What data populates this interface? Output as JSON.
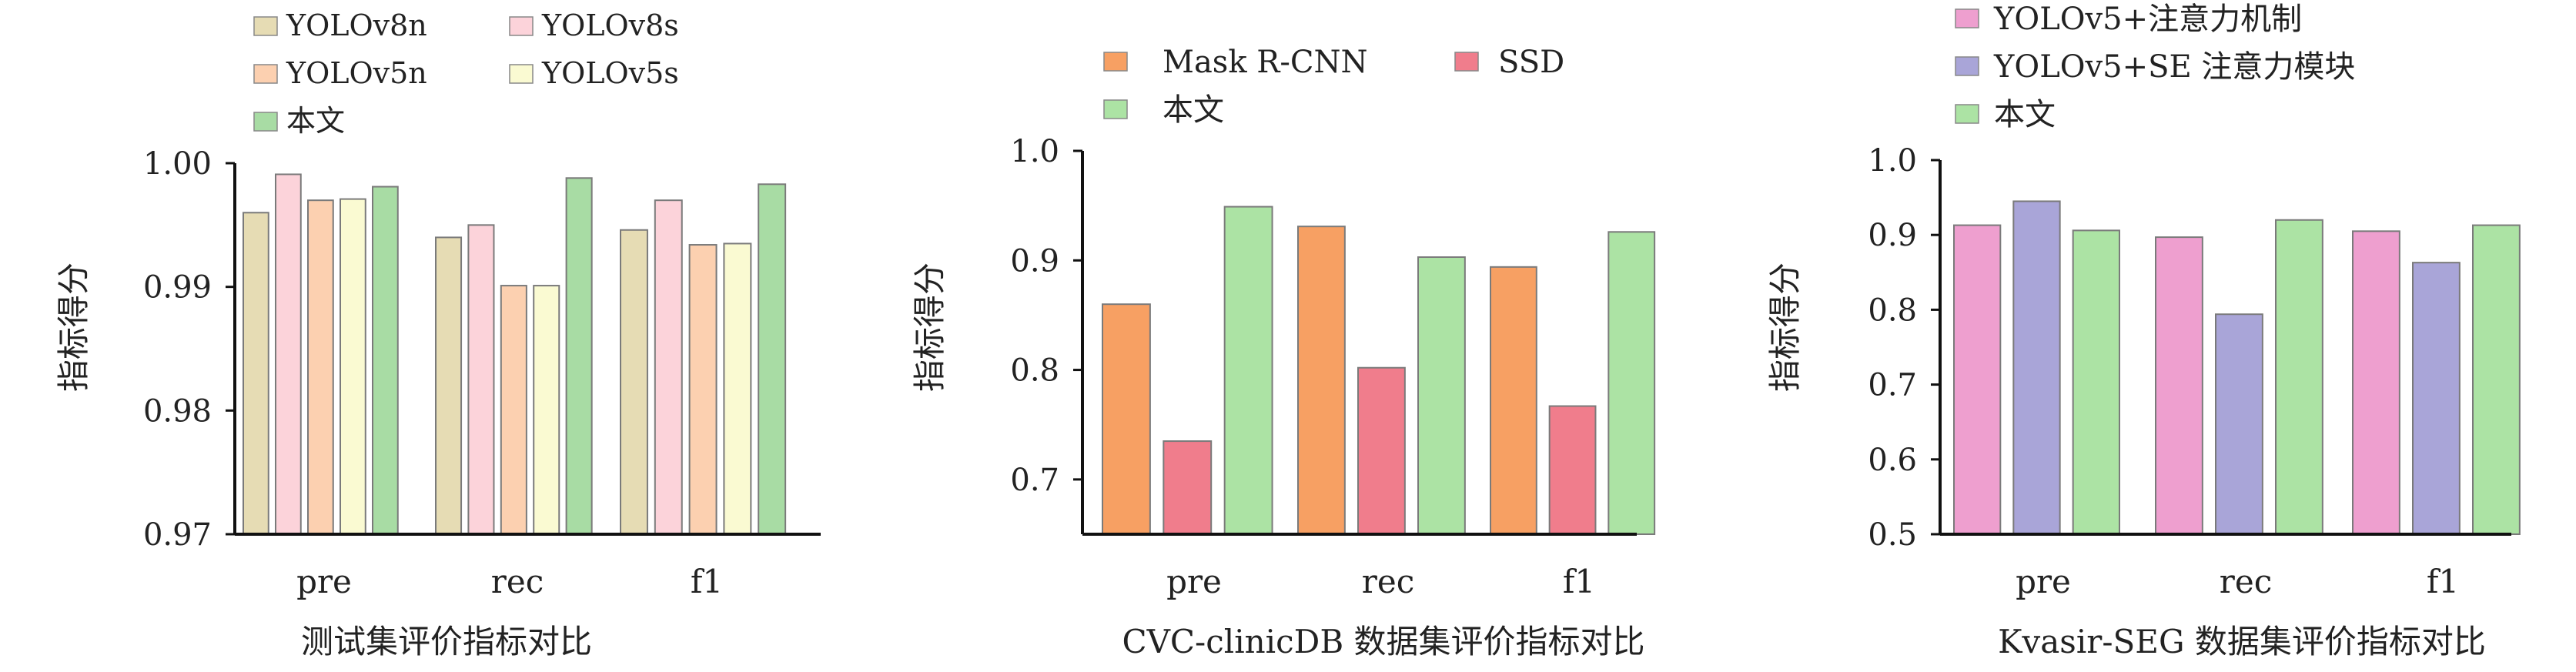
{
  "chart_data": [
    {
      "type": "bar",
      "title": "测试集评价指标对比",
      "ylabel": "指标得分",
      "xlabel": "",
      "categories": [
        "pre",
        "rec",
        "f1"
      ],
      "ylim": [
        0.97,
        1.0
      ],
      "yticks": [
        "0.97",
        "0.98",
        "0.99",
        "1.00"
      ],
      "tick_values": [
        0.97,
        0.98,
        0.99,
        1.0
      ],
      "legend_position": "top-left",
      "series": [
        {
          "name": "YOLOv8n",
          "color": "#e6dcb4",
          "values": [
            0.996,
            0.994,
            0.9946
          ]
        },
        {
          "name": "YOLOv8s",
          "color": "#fcd3da",
          "values": [
            0.9991,
            0.995,
            0.997
          ]
        },
        {
          "name": "YOLOv5n",
          "color": "#fcd0b0",
          "values": [
            0.997,
            0.9901,
            0.9934
          ]
        },
        {
          "name": "YOLOv5s",
          "color": "#fafad2",
          "values": [
            0.9971,
            0.9901,
            0.9935
          ]
        },
        {
          "name": "本文",
          "color": "#a8dca4",
          "values": [
            0.9981,
            0.9988,
            0.9983
          ]
        }
      ]
    },
    {
      "type": "bar",
      "title": "CVC-clinicDB 数据集评价指标对比",
      "ylabel": "指标得分",
      "xlabel": "",
      "categories": [
        "pre",
        "rec",
        "f1"
      ],
      "ylim": [
        0.65,
        1.0
      ],
      "yticks": [
        "0.7",
        "0.8",
        "0.9",
        "1.0"
      ],
      "tick_values": [
        0.7,
        0.8,
        0.9,
        1.0
      ],
      "legend_position": "top",
      "series": [
        {
          "name": "Mask R-CNN",
          "color": "#f7a063",
          "values": [
            0.86,
            0.931,
            0.894
          ]
        },
        {
          "name": "SSD",
          "color": "#f07d8c",
          "values": [
            0.735,
            0.802,
            0.767
          ]
        },
        {
          "name": "本文",
          "color": "#ace3a4",
          "values": [
            0.949,
            0.903,
            0.926
          ]
        }
      ]
    },
    {
      "type": "bar",
      "title": "Kvasir-SEG 数据集评价指标对比",
      "ylabel": "指标得分",
      "xlabel": "",
      "categories": [
        "pre",
        "rec",
        "f1"
      ],
      "ylim": [
        0.5,
        1.0
      ],
      "yticks": [
        "0.5",
        "0.6",
        "0.7",
        "0.8",
        "0.9",
        "1.0"
      ],
      "tick_values": [
        0.5,
        0.6,
        0.7,
        0.8,
        0.9,
        1.0
      ],
      "legend_position": "top",
      "series": [
        {
          "name": "YOLOv5+注意力机制",
          "color": "#ee9fcf",
          "values": [
            0.913,
            0.897,
            0.905
          ]
        },
        {
          "name": "YOLOv5+SE 注意力模块",
          "color": "#a9a5d8",
          "values": [
            0.945,
            0.794,
            0.863
          ]
        },
        {
          "name": "本文",
          "color": "#ace3a4",
          "values": [
            0.906,
            0.92,
            0.913
          ]
        }
      ]
    }
  ]
}
